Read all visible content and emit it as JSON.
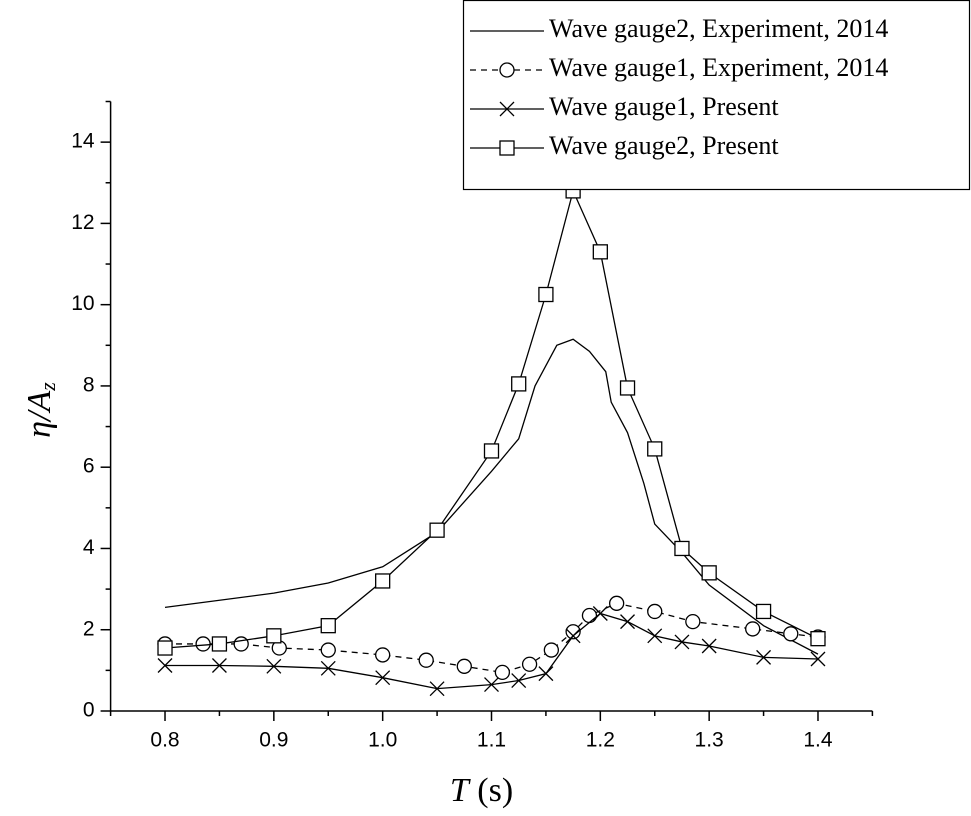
{
  "chart_data": {
    "type": "line",
    "xlabel": {
      "symbol": "T",
      "unit": "(s)"
    },
    "ylabel": {
      "symbol": "η/A",
      "subscript": "z"
    },
    "xlim": [
      0.75,
      1.45
    ],
    "xticks": [
      0.8,
      0.9,
      {
        "value": 1,
        "label": "1.0"
      },
      1.1,
      1.2,
      1.3,
      1.4
    ],
    "xticks_minor": [
      0.75,
      0.85,
      0.95,
      1.05,
      1.15,
      1.25,
      1.35,
      1.45
    ],
    "ylim": [
      0,
      15
    ],
    "yticks": [
      0,
      2,
      4,
      6,
      8,
      10,
      12,
      14
    ],
    "yticks_minor": [
      1,
      3,
      5,
      7,
      9,
      11,
      13,
      15
    ],
    "legend": "upper right",
    "series": [
      {
        "name": "Wave gauge2, Experiment, 2014",
        "color": "#000000",
        "marker": "none",
        "dash": "solid",
        "x": [
          0.8,
          0.9,
          0.95,
          1.0,
          1.05,
          1.1,
          1.125,
          1.14,
          1.16,
          1.175,
          1.19,
          1.205,
          1.21,
          1.225,
          1.24,
          1.25,
          1.275,
          1.3,
          1.35,
          1.4
        ],
        "values": [
          2.55,
          2.9,
          3.15,
          3.55,
          4.4,
          5.9,
          6.7,
          8.0,
          9.0,
          9.15,
          8.85,
          8.35,
          7.6,
          6.85,
          5.6,
          4.6,
          3.9,
          3.1,
          2.1,
          1.4
        ]
      },
      {
        "name": "Wave gauge1, Experiment, 2014",
        "color": "#000000",
        "marker": "circle",
        "dash": "dashed",
        "x": [
          0.8,
          0.835,
          0.87,
          0.905,
          0.95,
          1.0,
          1.04,
          1.075,
          1.11,
          1.135,
          1.155,
          1.175,
          1.19,
          1.215,
          1.25,
          1.285,
          1.34,
          1.375,
          1.4
        ],
        "values": [
          1.65,
          1.65,
          1.65,
          1.55,
          1.5,
          1.38,
          1.25,
          1.1,
          0.95,
          1.15,
          1.5,
          1.95,
          2.35,
          2.65,
          2.45,
          2.2,
          2.02,
          1.9,
          1.82
        ]
      },
      {
        "name": "Wave gauge1, Present",
        "color": "#000000",
        "marker": "x",
        "dash": "solid",
        "x": [
          0.8,
          0.85,
          0.9,
          0.95,
          1.0,
          1.05,
          1.1,
          1.125,
          1.15,
          1.175,
          1.2,
          1.225,
          1.25,
          1.275,
          1.3,
          1.35,
          1.4
        ],
        "values": [
          1.12,
          1.12,
          1.1,
          1.05,
          0.82,
          0.55,
          0.65,
          0.75,
          0.92,
          1.85,
          2.4,
          2.2,
          1.85,
          1.7,
          1.6,
          1.32,
          1.28
        ]
      },
      {
        "name": "Wave gauge2, Present",
        "color": "#000000",
        "marker": "square",
        "dash": "solid",
        "x": [
          0.8,
          0.85,
          0.9,
          0.95,
          1.0,
          1.05,
          1.1,
          1.125,
          1.15,
          1.175,
          1.2,
          1.225,
          1.25,
          1.275,
          1.3,
          1.35,
          1.4
        ],
        "values": [
          1.55,
          1.65,
          1.85,
          2.1,
          3.2,
          4.45,
          6.4,
          8.05,
          10.25,
          12.8,
          11.3,
          7.95,
          6.45,
          4.0,
          3.4,
          2.45,
          1.78
        ]
      }
    ]
  }
}
